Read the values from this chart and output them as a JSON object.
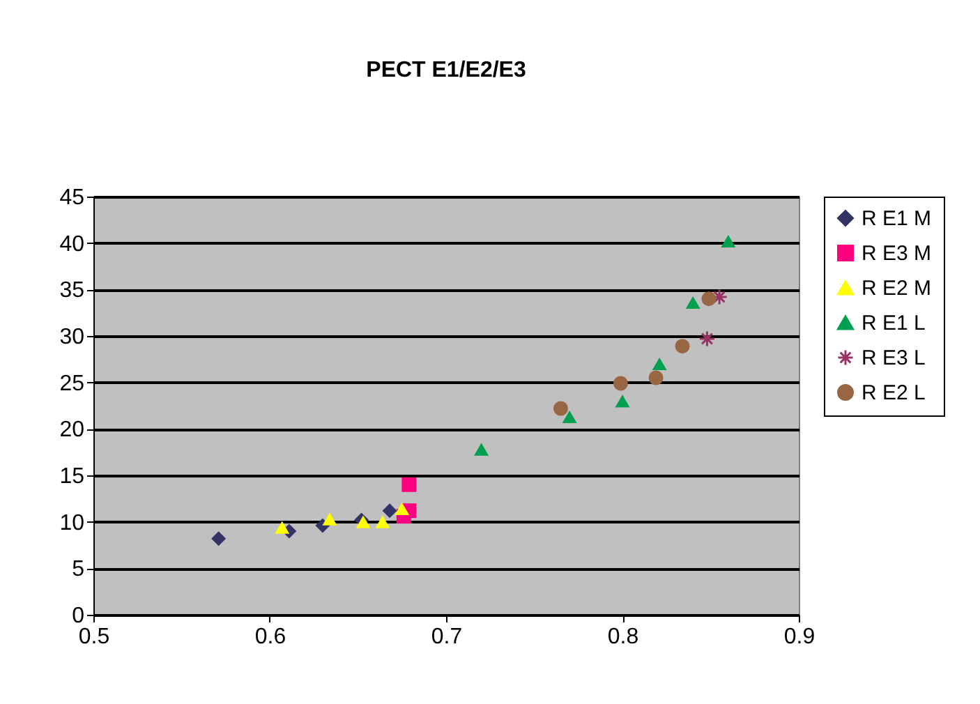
{
  "chart_data": {
    "type": "scatter",
    "title": "PECT E1/E2/E3",
    "xlim": [
      0.5,
      0.9
    ],
    "xticks": [
      0.5,
      0.6,
      0.7,
      0.8,
      0.9
    ],
    "ylim": [
      0,
      45
    ],
    "yticks": [
      0,
      5,
      10,
      15,
      20,
      25,
      30,
      35,
      40,
      45
    ],
    "grid": "y",
    "legend": "right",
    "series": [
      {
        "name": "R E1 M",
        "color": "#333366",
        "marker": "diamond",
        "x": [
          0.571,
          0.611,
          0.63,
          0.652,
          0.668
        ],
        "values": [
          8.2,
          9.0,
          9.6,
          10.2,
          11.2
        ]
      },
      {
        "name": "R E3 M",
        "color": "#ff0080",
        "marker": "square",
        "x": [
          0.679,
          0.679,
          0.676
        ],
        "values": [
          14.0,
          11.2,
          10.6
        ]
      },
      {
        "name": "R E2 M",
        "color": "#ffff00",
        "marker": "triangle",
        "x": [
          0.607,
          0.634,
          0.653,
          0.664,
          0.675
        ],
        "values": [
          9.4,
          10.3,
          10.0,
          10.0,
          11.4
        ]
      },
      {
        "name": "R E1 L",
        "color": "#00a050",
        "marker": "triangle",
        "x": [
          0.72,
          0.77,
          0.8,
          0.821,
          0.84,
          0.86
        ],
        "values": [
          17.8,
          21.3,
          23.0,
          27.0,
          33.6,
          40.2
        ]
      },
      {
        "name": "R E3 L",
        "color": "#993366",
        "marker": "cross",
        "x": [
          0.848,
          0.855
        ],
        "values": [
          29.7,
          34.2
        ]
      },
      {
        "name": "R E2 L",
        "color": "#996644",
        "marker": "circle",
        "x": [
          0.765,
          0.799,
          0.819,
          0.834,
          0.849
        ],
        "values": [
          22.2,
          24.9,
          25.5,
          28.9,
          34.0
        ]
      }
    ]
  }
}
